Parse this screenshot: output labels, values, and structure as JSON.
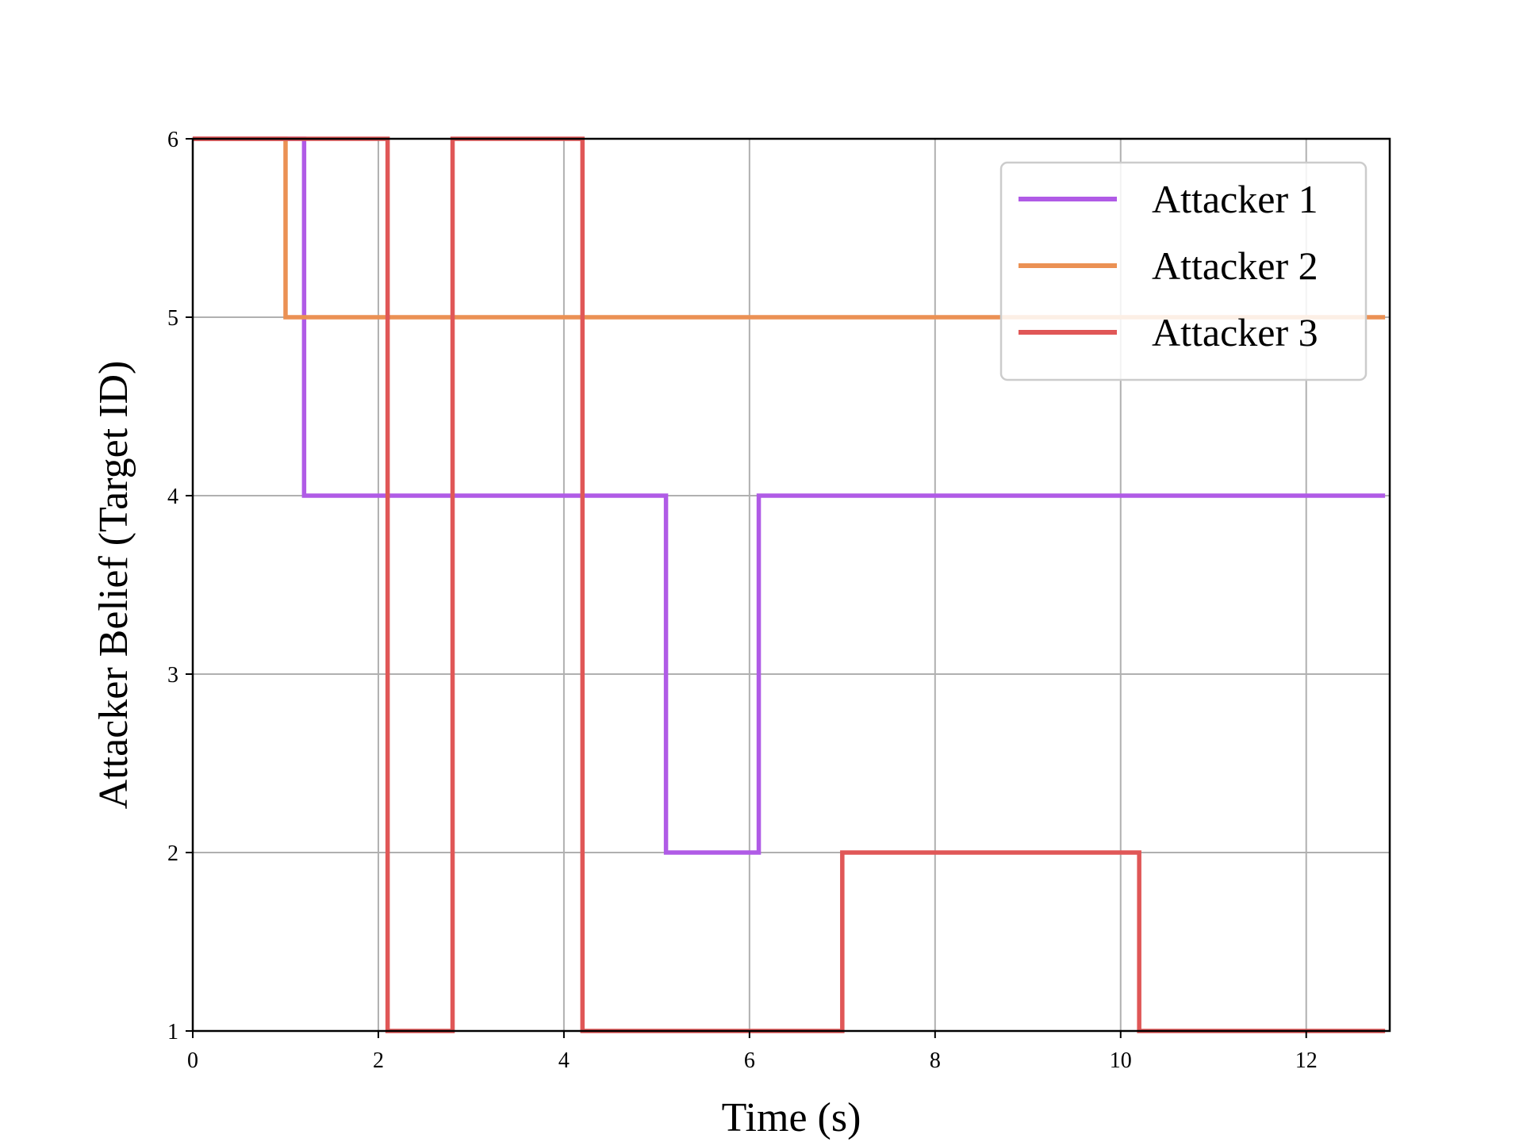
{
  "chart_data": {
    "type": "line",
    "step": "post",
    "title": "",
    "xlabel": "Time (s)",
    "ylabel": "Attacker Belief (Target ID)",
    "xlim": [
      0,
      12.9
    ],
    "ylim": [
      1,
      6
    ],
    "xticks": [
      0,
      2,
      4,
      6,
      8,
      10,
      12
    ],
    "yticks": [
      1,
      2,
      3,
      4,
      5,
      6
    ],
    "grid": true,
    "legend_position": "top-right",
    "series": [
      {
        "name": "Attacker 1",
        "color": "#b05be6",
        "x": [
          0,
          1.2,
          5.1,
          6.1,
          12.85
        ],
        "y": [
          6,
          4,
          2,
          4,
          4
        ]
      },
      {
        "name": "Attacker 2",
        "color": "#eb9154",
        "x": [
          0,
          1.0,
          12.85
        ],
        "y": [
          6,
          5,
          5
        ]
      },
      {
        "name": "Attacker 3",
        "color": "#e05757",
        "x": [
          0,
          2.1,
          2.8,
          4.2,
          7.0,
          10.2,
          12.85
        ],
        "y": [
          6,
          1,
          6,
          1,
          2,
          1,
          1
        ]
      }
    ]
  }
}
